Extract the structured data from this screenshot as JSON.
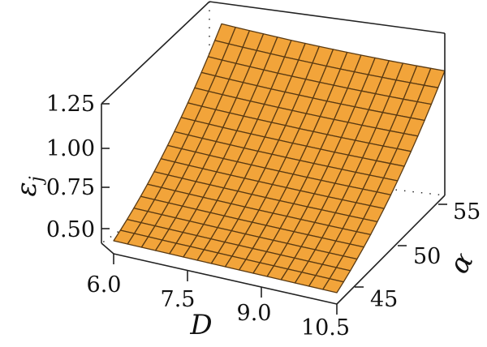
{
  "chart_data": {
    "type": "surface",
    "title": "",
    "z_axis": {
      "label": "ε",
      "label_subscript": "j",
      "ticks": [
        "1.25",
        "1.00",
        "0.75",
        "0.50"
      ],
      "range": [
        0.4,
        1.25
      ]
    },
    "x_axis": {
      "label": "D",
      "ticks": [
        "6.0",
        "7.5",
        "9.0",
        "10.5"
      ],
      "range": [
        6.0,
        10.5
      ]
    },
    "y_axis": {
      "label": "α",
      "ticks": [
        "45",
        "50",
        "55"
      ],
      "range": [
        44,
        56
      ]
    },
    "grid": false,
    "surface_color": "#f2a43a",
    "mesh_color": "#5a3a12",
    "surface_samples": {
      "D": [
        6.0,
        10.5
      ],
      "alpha": [
        44,
        56
      ],
      "corner_values": {
        "D6_alpha44": 0.42,
        "D10_5_alpha44": 0.41,
        "D6_alpha56": 1.08,
        "D10_5_alpha56": 1.1
      },
      "minimum_region": "D 6.0–10.5, α ≈ 44"
    }
  }
}
